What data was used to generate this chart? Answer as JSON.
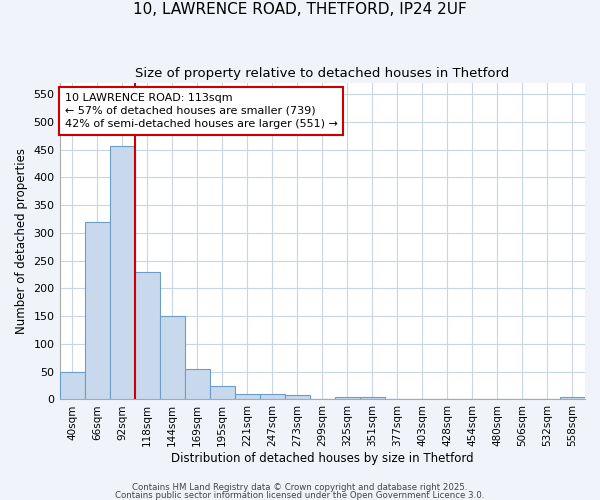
{
  "title_line1": "10, LAWRENCE ROAD, THETFORD, IP24 2UF",
  "title_line2": "Size of property relative to detached houses in Thetford",
  "xlabel": "Distribution of detached houses by size in Thetford",
  "ylabel": "Number of detached properties",
  "categories": [
    "40sqm",
    "66sqm",
    "92sqm",
    "118sqm",
    "144sqm",
    "169sqm",
    "195sqm",
    "221sqm",
    "247sqm",
    "273sqm",
    "299sqm",
    "325sqm",
    "351sqm",
    "377sqm",
    "403sqm",
    "428sqm",
    "454sqm",
    "480sqm",
    "506sqm",
    "532sqm",
    "558sqm"
  ],
  "values": [
    50,
    320,
    457,
    230,
    150,
    55,
    25,
    10,
    10,
    8,
    0,
    5,
    5,
    0,
    0,
    0,
    0,
    0,
    0,
    0,
    5
  ],
  "bar_color": "#c9d9ed",
  "bar_edge_color": "#6a9ec5",
  "annotation_line1": "10 LAWRENCE ROAD: 113sqm",
  "annotation_line2": "← 57% of detached houses are smaller (739)",
  "annotation_line3": "42% of semi-detached houses are larger (551) →",
  "annotation_box_color": "white",
  "annotation_box_edge_color": "#cc0000",
  "red_line_color": "#cc0000",
  "ylim": [
    0,
    570
  ],
  "yticks": [
    0,
    50,
    100,
    150,
    200,
    250,
    300,
    350,
    400,
    450,
    500,
    550
  ],
  "background_color": "#f0f4fa",
  "plot_bg_color": "#ffffff",
  "footer_line1": "Contains HM Land Registry data © Crown copyright and database right 2025.",
  "footer_line2": "Contains public sector information licensed under the Open Government Licence 3.0.",
  "grid_color": "#c8d4e8",
  "title_fontsize": 11,
  "subtitle_fontsize": 9.5
}
